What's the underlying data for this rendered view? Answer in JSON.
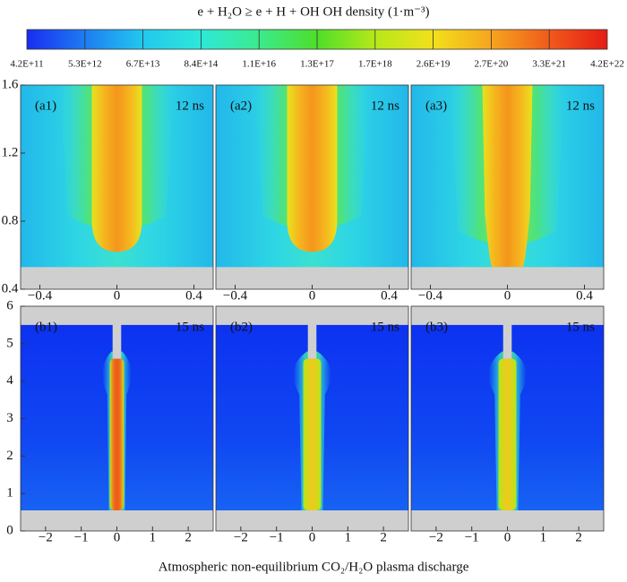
{
  "chart_data": {
    "type": "heatmap-grid",
    "title": "e + H₂O ≥ e + H + OH OH  density (1·m⁻³)",
    "xlabel": "Atmospheric non-equilibrium CO₂/H₂O plasma discharge",
    "colorbar": {
      "log_scale": true,
      "colors": [
        "#1a2cf0",
        "#1e7cf2",
        "#22c8ee",
        "#2ee8d8",
        "#3cea8c",
        "#4ede2a",
        "#b6e81a",
        "#f2e01c",
        "#f6a41e",
        "#f05a1c",
        "#e61c14"
      ],
      "ticks": [
        {
          "value": 420000000000.0,
          "label": "4.2E+11"
        },
        {
          "value": 5300000000000.0,
          "label": "5.3E+12"
        },
        {
          "value": 67000000000000.0,
          "label": "6.7E+13"
        },
        {
          "value": 840000000000000.0,
          "label": "8.4E+14"
        },
        {
          "value": 1.1e+16,
          "label": "1.1E+16"
        },
        {
          "value": 1.3e+17,
          "label": "1.3E+17"
        },
        {
          "value": 1.7e+18,
          "label": "1.7E+18"
        },
        {
          "value": 2.6e+19,
          "label": "2.6E+19"
        },
        {
          "value": 2.7e+20,
          "label": "2.7E+20"
        },
        {
          "value": 3.3e+21,
          "label": "3.3E+21"
        },
        {
          "value": 4.2e+22,
          "label": "4.2E+22"
        }
      ]
    },
    "rows": [
      {
        "xlim": [
          -0.5,
          0.5
        ],
        "xticks": [
          {
            "value": -0.4,
            "label": "−0.4"
          },
          0,
          0.4
        ],
        "ylim": [
          0.4,
          1.6
        ],
        "yticks": [
          0.4,
          0.8,
          1.2,
          1.6
        ],
        "panels": [
          {
            "label": "(a1)",
            "time": "12 ns"
          },
          {
            "label": "(a2)",
            "time": "12 ns"
          },
          {
            "label": "(a3)",
            "time": "12 ns"
          }
        ]
      },
      {
        "xlim": [
          -2.7,
          2.7
        ],
        "xticks": [
          {
            "value": -2,
            "label": "−2"
          },
          {
            "value": -1,
            "label": "−1"
          },
          0,
          1,
          2
        ],
        "ylim": [
          0,
          6
        ],
        "yticks": [
          0,
          1,
          2,
          3,
          4,
          5,
          6
        ],
        "panels": [
          {
            "label": "(b1)",
            "time": "15 ns"
          },
          {
            "label": "(b2)",
            "time": "15 ns"
          },
          {
            "label": "(b3)",
            "time": "15 ns"
          }
        ]
      }
    ]
  }
}
